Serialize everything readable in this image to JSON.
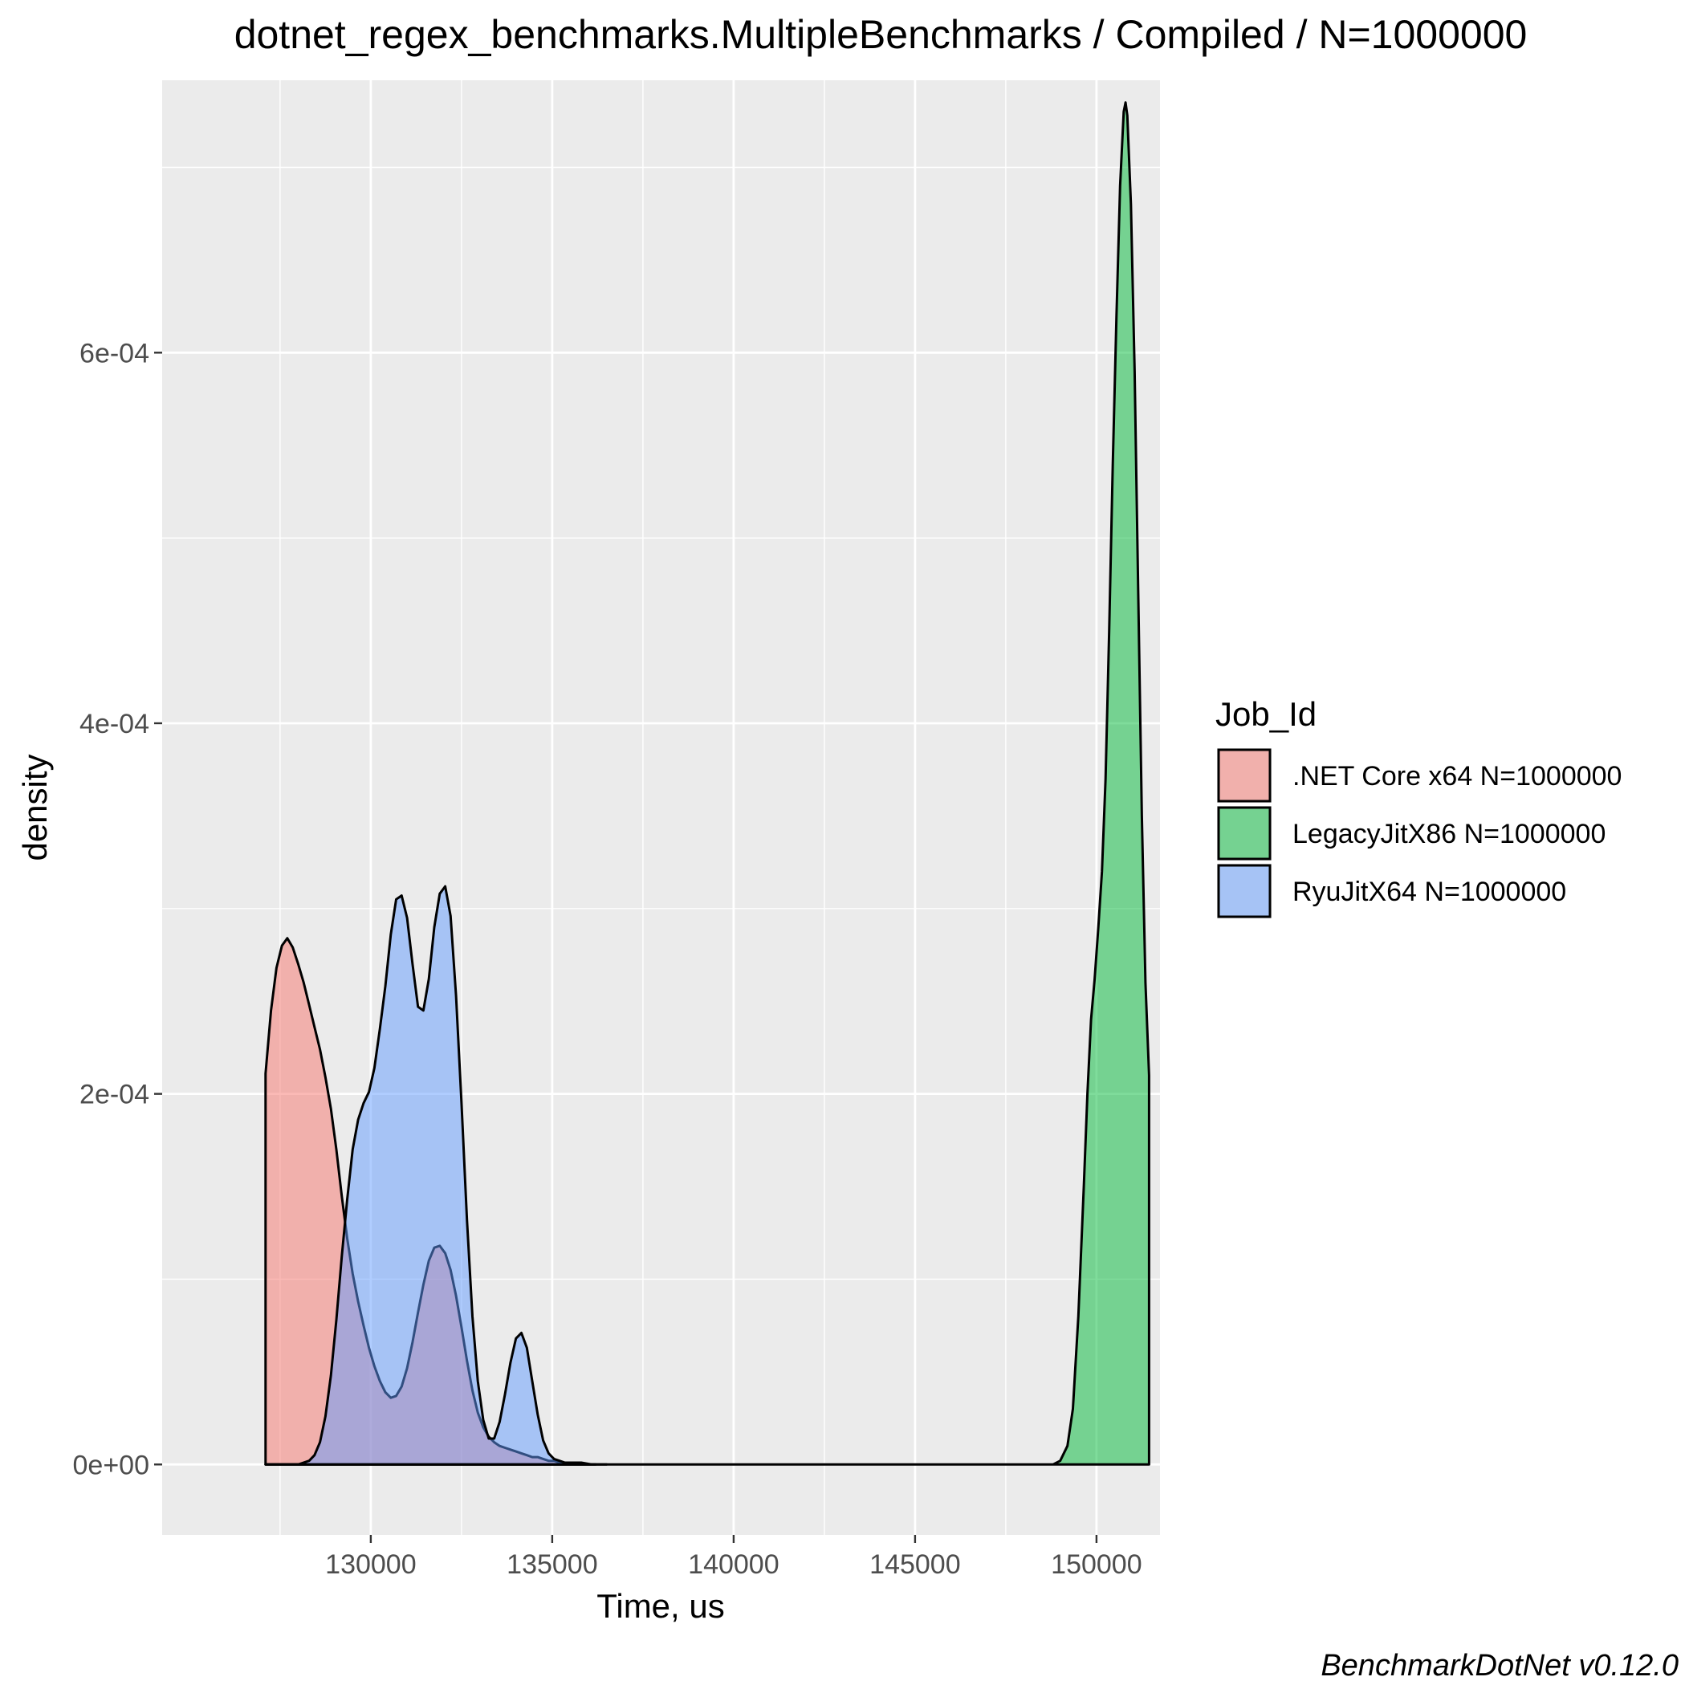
{
  "chart_data": {
    "type": "area",
    "title": "dotnet_regex_benchmarks.MultipleBenchmarks / Compiled / N=1000000",
    "xlabel": "Time, us",
    "ylabel": "density",
    "caption": "BenchmarkDotNet v0.12.0",
    "xlim": [
      124250,
      151750
    ],
    "ylim": [
      -3.8e-05,
      0.000747
    ],
    "x_ticks": [
      130000,
      135000,
      140000,
      145000,
      150000
    ],
    "x_tick_labels": [
      "130000",
      "135000",
      "140000",
      "145000",
      "150000"
    ],
    "y_ticks": [
      0,
      0.0002,
      0.0004,
      0.0006
    ],
    "y_tick_labels": [
      "0e+00",
      "2e-04",
      "4e-04",
      "6e-04"
    ],
    "grid": true,
    "legend": {
      "title": "Job_Id",
      "position": "right"
    },
    "series": [
      {
        "name": ".NET Core x64 N=1000000",
        "color": "#F8766D",
        "x": [
          127100,
          127100,
          127250,
          127400,
          127550,
          127700,
          127850,
          128000,
          128150,
          128300,
          128450,
          128600,
          128750,
          128900,
          129050,
          129200,
          129350,
          129500,
          129650,
          129800,
          129950,
          130100,
          130250,
          130400,
          130550,
          130700,
          130850,
          131000,
          131150,
          131300,
          131450,
          131600,
          131750,
          131900,
          132050,
          132200,
          132350,
          132500,
          132650,
          132800,
          132950,
          133100,
          133250,
          133400,
          133550,
          133700,
          133850,
          134000,
          134150,
          134300,
          134450,
          134600,
          134750,
          134900,
          135050,
          135200,
          135500,
          135800,
          136100,
          136200
        ],
        "y": [
          0,
          0.000211,
          0.000245,
          0.000268,
          0.00028,
          0.000284,
          0.000279,
          0.00027,
          0.00026,
          0.000248,
          0.000236,
          0.000224,
          0.000209,
          0.000192,
          0.00017,
          0.000145,
          0.000122,
          0.000103,
          8.8e-05,
          7.5e-05,
          6.3e-05,
          5.3e-05,
          4.5e-05,
          3.9e-05,
          3.6e-05,
          3.7e-05,
          4.2e-05,
          5.2e-05,
          6.6e-05,
          8.2e-05,
          9.7e-05,
          0.00011,
          0.000117,
          0.000118,
          0.000114,
          0.000105,
          9.1e-05,
          7.4e-05,
          5.6e-05,
          4e-05,
          2.8e-05,
          2e-05,
          1.5e-05,
          1.2e-05,
          1e-05,
          9e-06,
          8e-06,
          7e-06,
          6e-06,
          5e-06,
          4e-06,
          4e-06,
          3e-06,
          2e-06,
          2e-06,
          1e-06,
          1e-06,
          1e-06,
          0,
          0
        ]
      },
      {
        "name": "LegacyJitX86 N=1000000",
        "color": "#00BA38",
        "x": [
          127100,
          148800,
          149000,
          149200,
          149350,
          149500,
          149650,
          149750,
          149850,
          149950,
          150050,
          150150,
          150250,
          150350,
          150450,
          150550,
          150650,
          150750,
          150800,
          150850,
          150950,
          151050,
          151150,
          151250,
          151350,
          151450,
          151450
        ],
        "y": [
          0,
          0,
          2e-06,
          1e-05,
          3e-05,
          8e-05,
          0.00015,
          0.0002,
          0.00024,
          0.000262,
          0.00029,
          0.00032,
          0.00037,
          0.00045,
          0.00054,
          0.00062,
          0.00069,
          0.00073,
          0.000735,
          0.000728,
          0.00068,
          0.00059,
          0.00047,
          0.00035,
          0.00026,
          0.00021,
          0
        ]
      },
      {
        "name": "RyuJitX64 N=1000000",
        "color": "#619CFF",
        "x": [
          127100,
          128000,
          128300,
          128450,
          128600,
          128750,
          128900,
          129050,
          129200,
          129350,
          129500,
          129650,
          129800,
          129950,
          130100,
          130250,
          130400,
          130550,
          130700,
          130850,
          131000,
          131150,
          131300,
          131450,
          131600,
          131750,
          131900,
          132050,
          132200,
          132350,
          132500,
          132650,
          132800,
          132950,
          133100,
          133250,
          133400,
          133550,
          133700,
          133850,
          134000,
          134150,
          134300,
          134450,
          134600,
          134750,
          134900,
          135050,
          135200,
          135350,
          135500,
          135650,
          135800,
          136000,
          136200,
          136500
        ],
        "y": [
          0,
          0,
          2e-06,
          5e-06,
          1.2e-05,
          2.6e-05,
          4.8e-05,
          7.8e-05,
          0.000112,
          0.000143,
          0.00017,
          0.000186,
          0.000195,
          0.000201,
          0.000214,
          0.000235,
          0.000258,
          0.000286,
          0.000305,
          0.000307,
          0.000295,
          0.00027,
          0.000247,
          0.000245,
          0.000262,
          0.00029,
          0.000308,
          0.000312,
          0.000296,
          0.000253,
          0.000195,
          0.000132,
          8e-05,
          4.5e-05,
          2.4e-05,
          1.4e-05,
          1.4e-05,
          2.3e-05,
          3.8e-05,
          5.5e-05,
          6.8e-05,
          7.1e-05,
          6.3e-05,
          4.5e-05,
          2.7e-05,
          1.3e-05,
          6e-06,
          3e-06,
          2e-06,
          1e-06,
          1e-06,
          5e-07,
          3e-07,
          1e-07,
          0,
          0
        ]
      }
    ]
  }
}
